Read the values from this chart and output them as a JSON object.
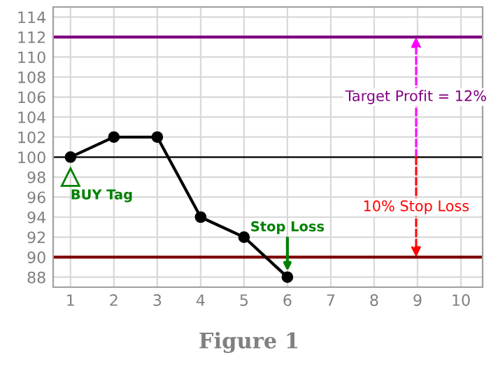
{
  "chart_data": {
    "type": "line",
    "title": "Figure 1",
    "x": [
      1,
      2,
      3,
      4,
      5,
      6
    ],
    "series": [
      {
        "color": "#000000",
        "values": [
          100,
          102,
          102,
          94,
          92,
          88
        ]
      }
    ],
    "marker": "circle",
    "line_style": "solid",
    "grid": true,
    "xlim": [
      0.6,
      10.5
    ],
    "xticks": [
      1,
      2,
      3,
      4,
      5,
      6,
      7,
      8,
      9,
      10
    ],
    "ylim": [
      87,
      115
    ],
    "yticks": [
      88,
      90,
      92,
      94,
      96,
      98,
      100,
      102,
      104,
      106,
      108,
      110,
      112,
      114
    ],
    "ref_lines": [
      {
        "axis": "y",
        "value": 112,
        "color": "#800080"
      },
      {
        "axis": "y",
        "value": 100,
        "color": "#000000"
      },
      {
        "axis": "y",
        "value": 90,
        "color": "#800000"
      }
    ],
    "annotations": [
      {
        "text": "BUY Tag",
        "x": 1,
        "y": 98
      },
      {
        "text": "Stop Loss",
        "x": 6,
        "y": 88
      },
      "Target Profit = 12%",
      "10% Stop Loss"
    ]
  }
}
